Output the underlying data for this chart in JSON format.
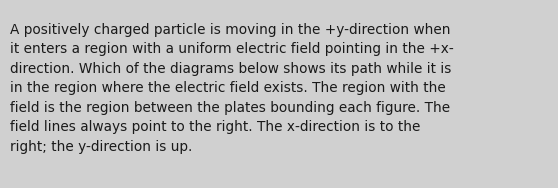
{
  "text": "A positively charged particle is moving in the +y-direction when\nit enters a region with a uniform electric field pointing in the +x-\ndirection. Which of the diagrams below shows its path while it is\nin the region where the electric field exists. The region with the\nfield is the region between the plates bounding each figure. The\nfield lines always point to the right. The x-direction is to the\nright; the y-direction is up.",
  "background_color": "#d0d0d0",
  "text_color": "#1a1a1a",
  "font_size": 9.8,
  "fig_width": 5.58,
  "fig_height": 1.88
}
